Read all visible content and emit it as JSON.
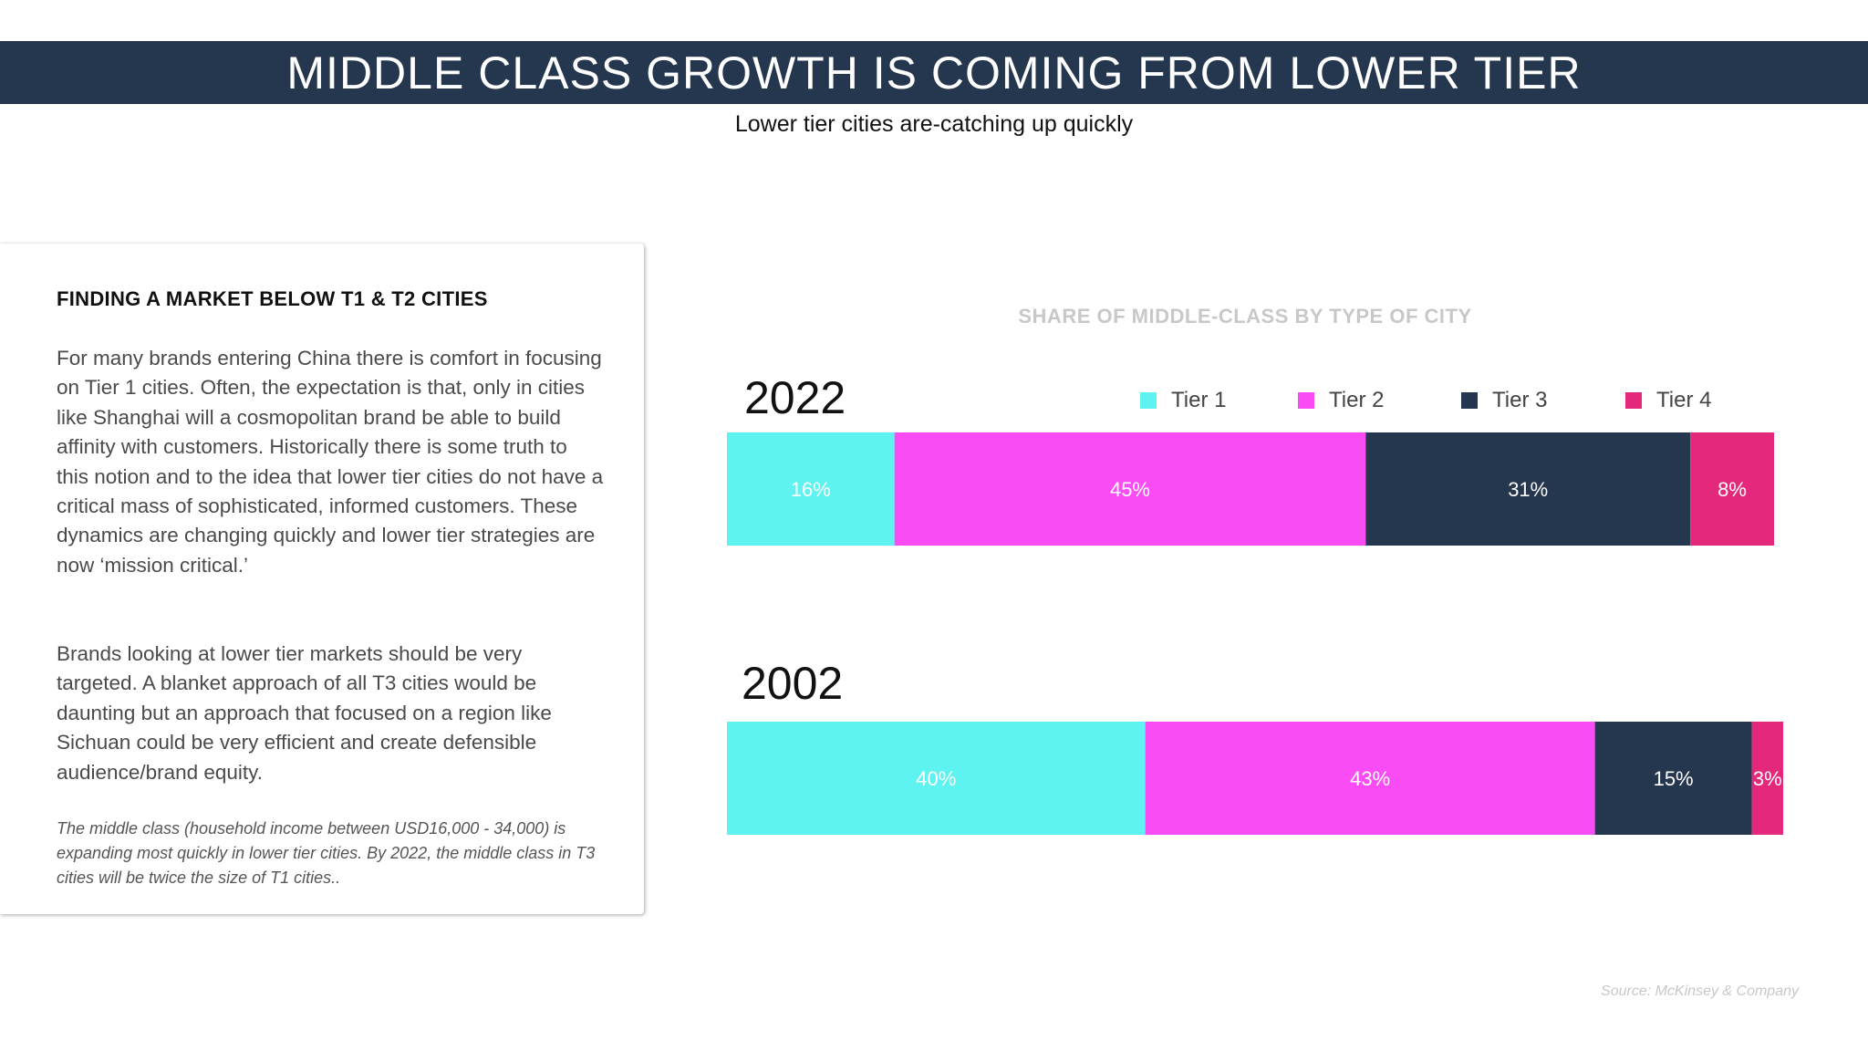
{
  "header": {
    "title": "MIDDLE CLASS GROWTH IS COMING FROM LOWER TIER",
    "subtitle": "Lower tier cities are-catching up quickly"
  },
  "card": {
    "heading": "FINDING A MARKET BELOW T1 & T2 CITIES",
    "paragraph1": "For many brands entering China there is comfort in focusing on Tier 1 cities. Often, the expectation is that, only in cities like Shanghai will a cosmopolitan brand be able to build affinity with customers. Historically there is some truth to this notion and to the idea that lower tier cities do not have a critical mass of sophisticated, informed customers. These dynamics are changing quickly and lower tier strategies are now ‘mission critical.’",
    "paragraph2": "Brands looking at lower tier markets should be very targeted. A blanket approach of all T3 cities would be daunting but an approach that focused on a region like Sichuan could be very efficient and create defensible audience/brand equity.",
    "note": "The middle class (household income between USD16,000 - 34,000) is expanding most quickly in lower tier cities. By 2022, the middle class in T3 cities will be twice the size of T1 cities.."
  },
  "source": "Source: McKinsey & Company",
  "colors": {
    "header_bg": "#25364f",
    "tier1": "#5ef3f0",
    "tier2": "#f94cf4",
    "tier3": "#25364f",
    "tier4": "#e4287a"
  },
  "chart_data": {
    "type": "bar",
    "orientation": "horizontal",
    "stacked": true,
    "title": "SHARE OF MIDDLE-CLASS BY TYPE OF CITY",
    "categories": [
      "2022",
      "2002"
    ],
    "series": [
      {
        "name": "Tier 1",
        "values": [
          16,
          40
        ],
        "labels": [
          "16%",
          "40%"
        ],
        "color": "#5ef3f0"
      },
      {
        "name": "Tier 2",
        "values": [
          45,
          43
        ],
        "labels": [
          "45%",
          "43%"
        ],
        "color": "#f94cf4"
      },
      {
        "name": "Tier 3",
        "values": [
          31,
          15
        ],
        "labels": [
          "31%",
          "15%"
        ],
        "color": "#25364f"
      },
      {
        "name": "Tier 4",
        "values": [
          8,
          3
        ],
        "labels": [
          "8%",
          "3%"
        ],
        "color": "#e4287a"
      }
    ],
    "legend": "top-right",
    "grid": false
  }
}
